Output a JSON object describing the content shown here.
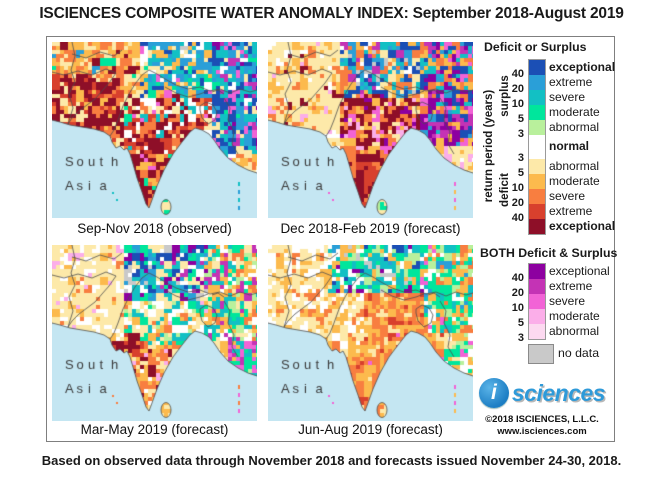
{
  "title": "ISCIENCES COMPOSITE WATER ANOMALY INDEX: September 2018-August 2019",
  "footer": "Based on observed data through November 2018 and forecasts issued November 24-30, 2018.",
  "map_colors": {
    "S4": "#1b4fb5",
    "S3": "#2a9fd8",
    "S2": "#12c0c4",
    "S1": "#00e69c",
    "S0": "#b9f09c",
    "N": "#ffffff",
    "D0": "#fde9a9",
    "D1": "#fcba4d",
    "D2": "#f87e40",
    "D3": "#d8402d",
    "D4": "#8e0f28",
    "B4": "#8d00a0",
    "B3": "#c433b5",
    "B2": "#f263d6",
    "B1": "#fbaee9",
    "B0": "#fcd9f0",
    "ND": "#c9c9c9",
    "ocean": "#c4e6f2",
    "coast": "#4d4d4d"
  },
  "panels": [
    {
      "label": "Sep-Nov 2018 (observed)",
      "region_label": "South Asia",
      "andaman": [
        "#12c0c4",
        "#2a9fd8"
      ],
      "zones": [
        {
          "x": [
            0,
            0.34
          ],
          "y": [
            0.2,
            0.56
          ],
          "w": {
            "D4": 5,
            "D3": 2,
            "D2": 2,
            "D1": 1,
            "D0": 0.5
          }
        },
        {
          "x": [
            0,
            0.42
          ],
          "y": [
            0,
            0.2
          ],
          "w": {
            "D1": 4,
            "D2": 3,
            "D0": 2,
            "D4": 0.6,
            "S3": 0.3,
            "S1": 0.2
          }
        },
        {
          "x": [
            0.42,
            0.78
          ],
          "y": [
            0,
            0.3
          ],
          "w": {
            "S3": 2,
            "S2": 2,
            "D0": 2,
            "N": 1,
            "S4": 1.2,
            "D1": 1,
            "B2": 0.3,
            "ND": 0.25,
            "S1": 0.5
          }
        },
        {
          "x": [
            0.78,
            1.01
          ],
          "y": [
            0,
            0.62
          ],
          "w": {
            "S4": 3,
            "S3": 2,
            "S2": 2,
            "B2": 1,
            "B3": 0.8,
            "D0": 1,
            "N": 0.5,
            "B4": 0.5,
            "S1": 0.5
          }
        },
        {
          "x": [
            0.34,
            0.78
          ],
          "y": [
            0.3,
            0.46
          ],
          "w": {
            "D4": 2,
            "D2": 2,
            "D0": 2,
            "N": 1.5,
            "S2": 1,
            "D3": 0.7,
            "B2": 0.3,
            "S1": 0.4
          }
        },
        {
          "x": [
            0.34,
            0.76
          ],
          "y": [
            0.46,
            0.63
          ],
          "w": {
            "D4": 4,
            "D3": 2,
            "D2": 2,
            "D0": 1,
            "N": 1,
            "S2": 0.4
          }
        },
        {
          "x": [
            0.72,
            0.88
          ],
          "y": [
            0.45,
            0.85
          ],
          "w": {
            "D0": 2,
            "N": 1.5,
            "S2": 1,
            "D2": 1,
            "S1": 0.6,
            "B2": 0.3
          }
        },
        {
          "x": [
            0.52,
            0.62
          ],
          "y": [
            0.86,
            1.01
          ],
          "w": {
            "D0": 3,
            "N": 1,
            "S0": 0.5,
            "S1": 0.4
          }
        },
        {
          "x": [
            0.36,
            0.72
          ],
          "y": [
            0.63,
            1.01
          ],
          "w": {
            "D4": 5,
            "D2": 1.5,
            "D1": 1,
            "D0": 0.6,
            "B2": 0.3,
            "S1": 0.2
          }
        },
        {
          "x": [
            0,
            1.01
          ],
          "y": [
            0,
            1.01
          ],
          "w": {
            "D0": 2,
            "D1": 2,
            "D2": 1,
            "N": 1
          }
        }
      ]
    },
    {
      "label": "Dec 2018-Feb 2019 (forecast)",
      "region_label": "South Asia",
      "andaman": [
        "#f263d6",
        "#fcba4d"
      ],
      "zones": [
        {
          "x": [
            0,
            0.36
          ],
          "y": [
            0,
            0.52
          ],
          "w": {
            "D0": 5,
            "D1": 1.5,
            "D2": 0.7,
            "N": 0.5,
            "D4": 0.25,
            "B1": 0.2
          }
        },
        {
          "x": [
            0.36,
            0.76
          ],
          "y": [
            0,
            0.3
          ],
          "w": {
            "S4": 2,
            "S3": 1.5,
            "S2": 1,
            "D1": 1.5,
            "D2": 1,
            "ND": 0.5,
            "B3": 0.5,
            "D0": 1.2,
            "N": 0.6
          }
        },
        {
          "x": [
            0.76,
            1.01
          ],
          "y": [
            0,
            0.6
          ],
          "w": {
            "B4": 2,
            "B3": 1.5,
            "S4": 1.5,
            "S2": 1,
            "D2": 1,
            "D1": 1,
            "B2": 1,
            "S3": 0.8
          }
        },
        {
          "x": [
            0.36,
            0.76
          ],
          "y": [
            0.3,
            0.62
          ],
          "w": {
            "D4": 3,
            "D2": 2,
            "D1": 1.5,
            "B2": 1,
            "B1": 0.8,
            "D0": 1,
            "B4": 0.4
          }
        },
        {
          "x": [
            0.52,
            0.62
          ],
          "y": [
            0.86,
            1.01
          ],
          "w": {
            "D0": 2.5,
            "S0": 1,
            "S1": 0.5,
            "N": 0.5
          }
        },
        {
          "x": [
            0.38,
            0.7
          ],
          "y": [
            0.62,
            1.01
          ],
          "w": {
            "D4": 4.5,
            "D3": 1.5,
            "D2": 1.5,
            "D1": 0.7,
            "B4": 0.3
          }
        },
        {
          "x": [
            0.7,
            0.88
          ],
          "y": [
            0.45,
            0.9
          ],
          "w": {
            "D1": 2,
            "D2": 1.5,
            "B2": 1,
            "B1": 1,
            "D0": 1,
            "B3": 0.5
          }
        },
        {
          "x": [
            0,
            1.01
          ],
          "y": [
            0,
            1.01
          ],
          "w": {
            "D0": 3,
            "D1": 1,
            "N": 0.7,
            "B1": 0.3
          }
        }
      ]
    },
    {
      "label": "Mar-May 2019 (forecast)",
      "region_label": "South Asia",
      "andaman": [
        "#f87e40",
        "#f263d6"
      ],
      "zones": [
        {
          "x": [
            0,
            0.36
          ],
          "y": [
            0,
            0.54
          ],
          "w": {
            "D0": 5,
            "N": 1,
            "D1": 0.8,
            "B1": 0.25,
            "D2": 0.3
          }
        },
        {
          "x": [
            0.36,
            0.76
          ],
          "y": [
            0,
            0.3
          ],
          "w": {
            "S2": 2,
            "B4": 1.3,
            "S4": 1,
            "S1": 1,
            "D0": 1.5,
            "N": 1,
            "ND": 0.4,
            "B3": 0.6,
            "S3": 0.7
          }
        },
        {
          "x": [
            0.76,
            1.01
          ],
          "y": [
            0,
            0.55
          ],
          "w": {
            "S2": 1.5,
            "S1": 1.5,
            "D1": 1.5,
            "D2": 1,
            "B3": 0.8,
            "S0": 0.8,
            "N": 0.8,
            "D0": 0.8
          }
        },
        {
          "x": [
            0.28,
            0.44
          ],
          "y": [
            0.48,
            0.64
          ],
          "w": {
            "D4": 2,
            "D3": 1.5,
            "D2": 1.5,
            "D1": 1,
            "D0": 0.6
          }
        },
        {
          "x": [
            0.36,
            0.76
          ],
          "y": [
            0.3,
            0.56
          ],
          "w": {
            "N": 2,
            "D0": 2,
            "S1": 1,
            "S2": 1,
            "D1": 1,
            "S0": 0.8,
            "B1": 0.3,
            "D2": 0.5
          }
        },
        {
          "x": [
            0.85,
            1.01
          ],
          "y": [
            0.55,
            1.01
          ],
          "w": {
            "S1": 1.5,
            "B3": 1,
            "B2": 1,
            "S2": 1,
            "D1": 0.7,
            "S0": 0.7
          }
        },
        {
          "x": [
            0.52,
            0.62
          ],
          "y": [
            0.86,
            1.01
          ],
          "w": {
            "D0": 2,
            "D1": 2,
            "D2": 0.5
          }
        },
        {
          "x": [
            0.38,
            0.74
          ],
          "y": [
            0.56,
            1.01
          ],
          "w": {
            "D2": 3,
            "D1": 2.5,
            "D0": 1,
            "D4": 0.7,
            "B1": 0.3,
            "N": 0.5
          }
        },
        {
          "x": [
            0,
            1.01
          ],
          "y": [
            0,
            1.01
          ],
          "w": {
            "D0": 3,
            "D1": 1,
            "N": 1
          }
        }
      ]
    },
    {
      "label": "Jun-Aug 2019 (forecast)",
      "region_label": "South Asia",
      "andaman": [
        "#f263d6",
        "#fcba4d"
      ],
      "zones": [
        {
          "x": [
            0,
            0.3
          ],
          "y": [
            0,
            0.52
          ],
          "w": {
            "D0": 3,
            "N": 1.5,
            "D1": 1,
            "D2": 0.3
          }
        },
        {
          "x": [
            0.3,
            0.76
          ],
          "y": [
            0,
            0.28
          ],
          "w": {
            "S2": 1.5,
            "S1": 1.2,
            "N": 1.2,
            "ND": 0.6,
            "S4": 0.5,
            "B4": 0.5,
            "D1": 1,
            "S0": 0.8,
            "S3": 0.5
          }
        },
        {
          "x": [
            0.76,
            1.01
          ],
          "y": [
            0,
            0.5
          ],
          "w": {
            "S1": 1.5,
            "S2": 1,
            "S0": 1,
            "N": 1,
            "D1": 1,
            "D2": 0.8,
            "B2": 0.3,
            "S3": 0.5
          }
        },
        {
          "x": [
            0.24,
            0.46
          ],
          "y": [
            0.28,
            0.6
          ],
          "w": {
            "D0": 2.5,
            "D1": 2,
            "N": 1,
            "D2": 0.8
          }
        },
        {
          "x": [
            0.85,
            1.01
          ],
          "y": [
            0.5,
            1.01
          ],
          "w": {
            "S0": 1,
            "S1": 1,
            "D1": 1,
            "B2": 0.5,
            "N": 1,
            "D0": 0.8
          }
        },
        {
          "x": [
            0.52,
            0.62
          ],
          "y": [
            0.86,
            1.01
          ],
          "w": {
            "D1": 2,
            "D2": 1.5,
            "D0": 1
          }
        },
        {
          "x": [
            0.3,
            0.85
          ],
          "y": [
            0.28,
            1.01
          ],
          "w": {
            "D2": 4,
            "D1": 2.5,
            "D3": 0.6,
            "D0": 1,
            "B2": 0.25
          }
        },
        {
          "x": [
            0,
            1.01
          ],
          "y": [
            0,
            1.01
          ],
          "w": {
            "D0": 3,
            "D1": 1.5,
            "N": 0.8
          }
        }
      ]
    }
  ],
  "legend_deficit_surplus": {
    "title": "Deficit or Surplus",
    "axis_label": "return period (years)",
    "surplus_label": "surplus",
    "deficit_label": "deficit",
    "ticks_surplus": [
      "40",
      "20",
      "10",
      "5",
      "3"
    ],
    "ticks_deficit": [
      "3",
      "5",
      "10",
      "20",
      "40"
    ],
    "cells": [
      {
        "key": "S4",
        "label": "exceptional",
        "bold": true
      },
      {
        "key": "S3",
        "label": "extreme"
      },
      {
        "key": "S2",
        "label": "severe"
      },
      {
        "key": "S1",
        "label": "moderate"
      },
      {
        "key": "S0",
        "label": "abnormal"
      },
      {
        "key": "N",
        "label": "normal",
        "bold": true,
        "tall": true
      },
      {
        "key": "D0",
        "label": "abnormal"
      },
      {
        "key": "D1",
        "label": "moderate"
      },
      {
        "key": "D2",
        "label": "severe"
      },
      {
        "key": "D3",
        "label": "extreme"
      },
      {
        "key": "D4",
        "label": "exceptional",
        "bold": true
      }
    ]
  },
  "legend_both": {
    "title": "BOTH Deficit & Surplus",
    "ticks": [
      "40",
      "20",
      "10",
      "5",
      "3"
    ],
    "cells": [
      {
        "key": "B4",
        "label": "exceptional"
      },
      {
        "key": "B3",
        "label": "extreme"
      },
      {
        "key": "B2",
        "label": "severe"
      },
      {
        "key": "B1",
        "label": "moderate"
      },
      {
        "key": "B0",
        "label": "abnormal"
      }
    ],
    "no_data": {
      "key": "ND",
      "label": "no data"
    }
  },
  "logo": {
    "icon_letter": "i",
    "brand": "sciences",
    "copyright": "©2018 ISCIENCES, L.L.C.",
    "website": "www.isciences.com"
  }
}
